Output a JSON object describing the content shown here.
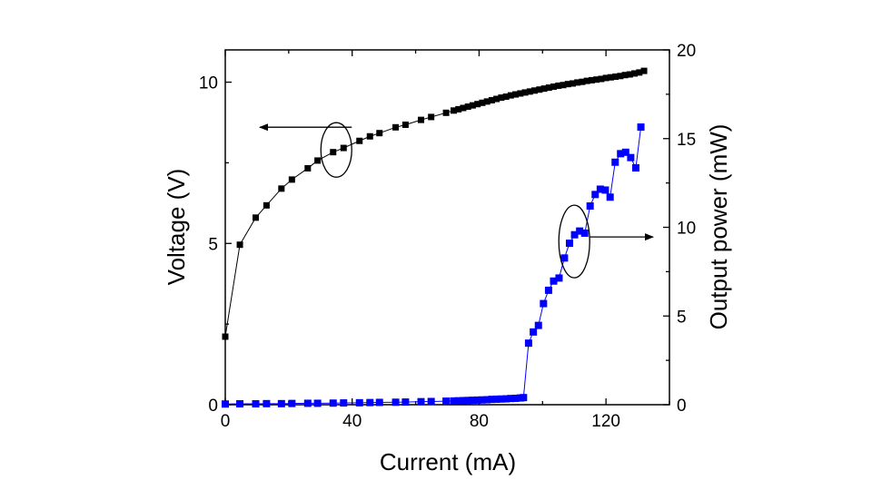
{
  "chart_data": {
    "type": "scatter",
    "xlabel": "Current (mA)",
    "ylabel": "Voltage (V)",
    "y2label": "Output power (mW)",
    "xlim": [
      0,
      140
    ],
    "ylim": [
      0,
      11
    ],
    "y2lim": [
      0,
      20
    ],
    "x_ticks": [
      "0",
      "40",
      "80",
      "120"
    ],
    "y_ticks": [
      "0",
      "5",
      "10"
    ],
    "y2_ticks": [
      "0",
      "5",
      "10",
      "15",
      "20"
    ],
    "grid": false,
    "series": [
      {
        "axis": "left",
        "color": "#000000",
        "marker": "square",
        "x": [
          0,
          4.6,
          9.6,
          13,
          17.7,
          21,
          26,
          29.1,
          34,
          37.3,
          42.3,
          45.6,
          48.6,
          53.7,
          56.8,
          61.7,
          64.9,
          69.6,
          72,
          73.5,
          75,
          76.5,
          78,
          79.5,
          81,
          82.5,
          84,
          85.5,
          87,
          88.5,
          90,
          91.5,
          93,
          94.5,
          96,
          97.5,
          99,
          100.5,
          102,
          103.5,
          105,
          106.5,
          108,
          109.5,
          111,
          112.5,
          114,
          115.5,
          117,
          118.5,
          120,
          121.5,
          123,
          124.5,
          126,
          127.5,
          129,
          130.5,
          132
        ],
        "y": [
          2.11,
          4.96,
          5.8,
          6.18,
          6.7,
          6.98,
          7.33,
          7.57,
          7.83,
          7.96,
          8.18,
          8.32,
          8.42,
          8.6,
          8.68,
          8.83,
          8.92,
          9.05,
          9.12,
          9.16,
          9.2,
          9.24,
          9.28,
          9.32,
          9.36,
          9.4,
          9.44,
          9.48,
          9.52,
          9.55,
          9.59,
          9.62,
          9.65,
          9.68,
          9.71,
          9.74,
          9.77,
          9.8,
          9.83,
          9.86,
          9.89,
          9.91,
          9.94,
          9.96,
          9.99,
          10.01,
          10.04,
          10.06,
          10.08,
          10.1,
          10.13,
          10.15,
          10.17,
          10.19,
          10.22,
          10.24,
          10.27,
          10.3,
          10.35
        ]
      },
      {
        "axis": "right",
        "color": "#0000ff",
        "marker": "square",
        "x": [
          0,
          4.6,
          9.6,
          13,
          17.7,
          21,
          26,
          29.1,
          34,
          37.3,
          42.3,
          45.6,
          48.6,
          53.7,
          56.8,
          61.7,
          64.9,
          69.6,
          72,
          73.5,
          75,
          76.5,
          78,
          79.5,
          81,
          82.5,
          84,
          85.5,
          87,
          88.5,
          90,
          91.5,
          93,
          94,
          95.6,
          97.1,
          98.7,
          100.3,
          101.9,
          103.5,
          105.2,
          106.9,
          108.5,
          110.1,
          111.7,
          113.3,
          115,
          116.6,
          118.2,
          119.8,
          121.3,
          122.9,
          124.6,
          126.2,
          127.8,
          129.4,
          131
        ],
        "y": [
          0.04,
          0.05,
          0.05,
          0.06,
          0.06,
          0.07,
          0.08,
          0.08,
          0.09,
          0.1,
          0.11,
          0.12,
          0.13,
          0.14,
          0.15,
          0.17,
          0.18,
          0.2,
          0.21,
          0.22,
          0.23,
          0.24,
          0.25,
          0.26,
          0.27,
          0.28,
          0.3,
          0.31,
          0.32,
          0.33,
          0.35,
          0.36,
          0.38,
          0.4,
          3.47,
          4.1,
          4.47,
          5.7,
          6.45,
          6.97,
          7.14,
          8.27,
          9.1,
          9.58,
          9.79,
          9.67,
          11.2,
          11.85,
          12.15,
          12.1,
          11.7,
          13.67,
          14.15,
          14.23,
          13.93,
          13.35,
          15.65
        ]
      }
    ],
    "annotations": [
      {
        "type": "ellipse-arrow",
        "points_to": "left axis",
        "around_x": 35,
        "around_axis": "left",
        "around_y": 7.9
      },
      {
        "type": "ellipse-arrow",
        "points_to": "right axis",
        "around_x": 110,
        "around_axis": "right",
        "around_y": 9.2
      }
    ]
  }
}
